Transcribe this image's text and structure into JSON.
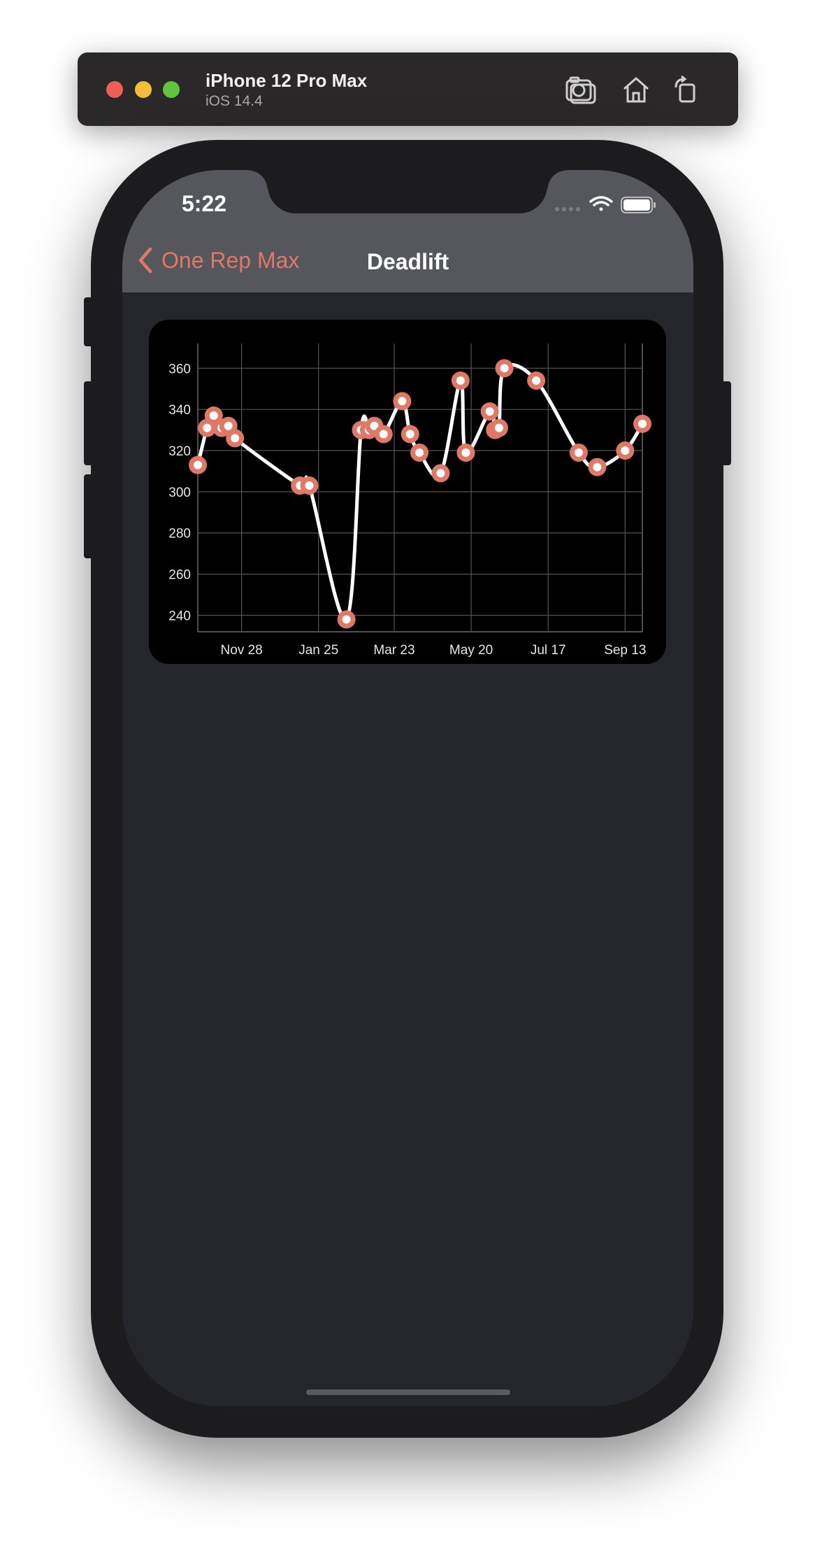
{
  "simulator": {
    "device_name": "iPhone 12 Pro Max",
    "os_version": "iOS 14.4",
    "buttons": [
      "screenshot-icon",
      "home-icon",
      "rotate-icon"
    ]
  },
  "status_bar": {
    "time": "5:22",
    "icons": [
      "signal-icon",
      "wifi-icon",
      "battery-icon"
    ]
  },
  "nav": {
    "back_label": "One Rep Max",
    "title": "Deadlift"
  },
  "colors": {
    "accent": "#e07868",
    "nav_background": "#56575c",
    "screen_background": "#24262b",
    "chart_background": "#000000",
    "line": "#ffffff"
  },
  "chart_data": {
    "type": "line",
    "title": "",
    "xlabel": "",
    "ylabel": "",
    "x_ticks": [
      "Nov 28",
      "Jan 25",
      "Mar 23",
      "May 20",
      "Jul 17",
      "Sep 13"
    ],
    "y_ticks": [
      240,
      260,
      280,
      300,
      320,
      340,
      360
    ],
    "ylim": [
      232,
      372
    ],
    "grid": true,
    "series": [
      {
        "points": [
          {
            "x": "Oct 26",
            "y": 313
          },
          {
            "x": "Nov 2",
            "y": 331
          },
          {
            "x": "Nov 7",
            "y": 337
          },
          {
            "x": "Nov 13",
            "y": 331
          },
          {
            "x": "Nov 18",
            "y": 332
          },
          {
            "x": "Nov 23",
            "y": 326
          },
          {
            "x": "Jan 11",
            "y": 303
          },
          {
            "x": "Jan 18",
            "y": 303
          },
          {
            "x": "Feb 15",
            "y": 238
          },
          {
            "x": "Feb 26",
            "y": 330
          },
          {
            "x": "Mar 4",
            "y": 330
          },
          {
            "x": "Mar 8",
            "y": 332
          },
          {
            "x": "Mar 15",
            "y": 328
          },
          {
            "x": "Mar 29",
            "y": 344
          },
          {
            "x": "Apr 4",
            "y": 328
          },
          {
            "x": "Apr 11",
            "y": 319
          },
          {
            "x": "Apr 27",
            "y": 309
          },
          {
            "x": "May 12",
            "y": 354
          },
          {
            "x": "May 16",
            "y": 319
          },
          {
            "x": "Jun 3",
            "y": 339
          },
          {
            "x": "Jun 7",
            "y": 330
          },
          {
            "x": "Jun 10",
            "y": 331
          },
          {
            "x": "Jun 14",
            "y": 360
          },
          {
            "x": "Jul 8",
            "y": 354
          },
          {
            "x": "Aug 9",
            "y": 319
          },
          {
            "x": "Aug 23",
            "y": 312
          },
          {
            "x": "Sep 13",
            "y": 320
          },
          {
            "x": "Sep 26",
            "y": 333
          }
        ]
      }
    ]
  }
}
